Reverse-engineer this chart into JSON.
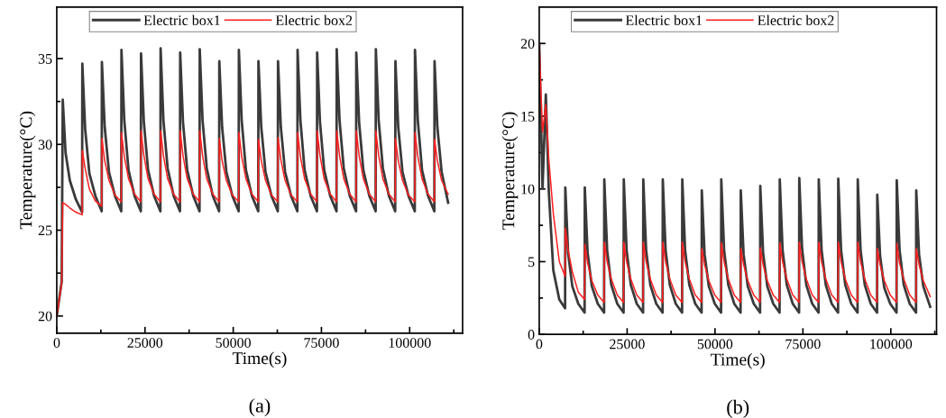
{
  "chart_data": [
    {
      "type": "line",
      "title": "(a)",
      "xlabel": "Time(s)",
      "ylabel": "Temperature(°C)",
      "legend": "top left",
      "grid": false,
      "xlim": [
        0,
        115000
      ],
      "ylim": [
        19,
        38
      ],
      "xticks": [
        0,
        {
          "value": 12500,
          "label": null
        },
        25000,
        {
          "value": 37500,
          "label": null
        },
        50000,
        {
          "value": 62500,
          "label": null
        },
        75000,
        {
          "value": 87500,
          "label": null
        },
        100000,
        {
          "value": 112500,
          "label": null
        }
      ],
      "yticks": [
        20,
        {
          "value": 22.5,
          "label": null
        },
        25,
        {
          "value": 27.5,
          "label": null
        },
        30,
        {
          "value": 32.5,
          "label": null
        },
        35
      ],
      "x": [
        0,
        1400,
        1700,
        2500,
        3700,
        5400,
        7185,
        7245,
        8045,
        9245,
        10945,
        12730,
        12790,
        13590,
        14790,
        16490,
        18275,
        18335,
        19135,
        20335,
        22035,
        23820,
        23880,
        24680,
        25880,
        27580,
        29365,
        29425,
        30225,
        31425,
        33125,
        34910,
        34970,
        35770,
        36970,
        38670,
        40455,
        40515,
        41315,
        42515,
        44215,
        46000,
        46060,
        46860,
        48060,
        49760,
        51545,
        51605,
        52405,
        53605,
        55305,
        57090,
        57150,
        57950,
        59150,
        60850,
        62635,
        62695,
        63495,
        64695,
        66395,
        68180,
        68240,
        69040,
        70240,
        71940,
        73725,
        73785,
        74585,
        75785,
        77485,
        79270,
        79330,
        80130,
        81330,
        83030,
        84815,
        84875,
        85675,
        86875,
        88575,
        90360,
        90420,
        91220,
        92420,
        94120,
        95905,
        95965,
        96765,
        97965,
        99665,
        101450,
        101510,
        102310,
        103510,
        105210,
        106995,
        107055,
        107855,
        109055,
        110900
      ],
      "series": [
        {
          "name": "Electric box1",
          "color": "#3a3a3a",
          "values": [
            20.0,
            22.0,
            32.6,
            29.5,
            27.9,
            26.8,
            26.05,
            34.7,
            30.9,
            28.3,
            27.0,
            26.1,
            34.8,
            31.0,
            28.4,
            27.0,
            26.1,
            35.5,
            31.4,
            28.5,
            27.0,
            26.1,
            35.3,
            31.3,
            28.5,
            27.0,
            26.1,
            35.6,
            31.4,
            28.6,
            27.0,
            26.1,
            35.35,
            31.3,
            28.5,
            27.0,
            26.1,
            35.55,
            31.4,
            28.6,
            27.0,
            26.1,
            34.85,
            31.0,
            28.4,
            27.0,
            26.1,
            35.5,
            31.4,
            28.5,
            27.0,
            26.1,
            34.85,
            31.0,
            28.4,
            27.0,
            26.1,
            34.85,
            31.0,
            28.4,
            27.0,
            26.1,
            35.5,
            31.4,
            28.5,
            27.0,
            26.1,
            35.35,
            31.3,
            28.5,
            27.0,
            26.1,
            35.55,
            31.4,
            28.6,
            27.0,
            26.1,
            35.35,
            31.3,
            28.5,
            27.0,
            26.1,
            35.55,
            31.4,
            28.6,
            27.0,
            26.1,
            34.85,
            31.0,
            28.4,
            27.0,
            26.1,
            35.5,
            31.4,
            28.5,
            27.0,
            26.1,
            34.85,
            31.0,
            28.4,
            26.6
          ]
        },
        {
          "name": "Electric box2",
          "color": "#ff2020",
          "values": [
            20.0,
            21.9,
            26.6,
            26.5,
            26.3,
            26.05,
            25.9,
            29.65,
            28.6,
            27.4,
            26.7,
            26.4,
            30.35,
            29.05,
            27.9,
            27.05,
            26.65,
            30.7,
            29.3,
            28.0,
            27.1,
            26.65,
            30.8,
            29.35,
            28.0,
            27.1,
            26.65,
            30.8,
            29.35,
            28.0,
            27.1,
            26.65,
            30.8,
            29.35,
            28.0,
            27.1,
            26.65,
            30.8,
            29.35,
            28.0,
            27.1,
            26.65,
            30.35,
            29.05,
            27.9,
            27.05,
            26.65,
            30.7,
            29.3,
            28.0,
            27.1,
            26.65,
            30.3,
            29.05,
            27.9,
            27.05,
            26.65,
            30.4,
            29.1,
            27.9,
            27.05,
            26.65,
            30.7,
            29.3,
            28.0,
            27.1,
            26.65,
            30.8,
            29.35,
            28.0,
            27.1,
            26.65,
            30.8,
            29.35,
            28.0,
            27.1,
            26.65,
            30.8,
            29.35,
            28.0,
            27.1,
            26.65,
            30.8,
            29.35,
            28.0,
            27.1,
            26.65,
            30.35,
            29.05,
            27.9,
            27.05,
            26.65,
            30.7,
            29.3,
            28.0,
            27.1,
            26.65,
            30.3,
            29.05,
            27.9,
            27.1
          ]
        }
      ]
    },
    {
      "type": "line",
      "title": "(b)",
      "xlabel": "Time(s)",
      "ylabel": "Temperature(°C)",
      "legend": "top left",
      "grid": false,
      "xlim": [
        0,
        113000
      ],
      "ylim": [
        0,
        22.5
      ],
      "xticks": [
        0,
        {
          "value": 12500,
          "label": null
        },
        25000,
        {
          "value": 37500,
          "label": null
        },
        50000,
        {
          "value": 62500,
          "label": null
        },
        75000,
        {
          "value": 87500,
          "label": null
        },
        100000,
        {
          "value": 112500,
          "label": null
        }
      ],
      "yticks": [
        0,
        {
          "value": 2.5,
          "label": null
        },
        5,
        {
          "value": 7.5,
          "label": null
        },
        10,
        {
          "value": 12.5,
          "label": null
        },
        15,
        {
          "value": 17.5,
          "label": null
        },
        20
      ],
      "x": [
        0,
        940,
        1880,
        2730,
        4010,
        5715,
        7360,
        7420,
        8220,
        9420,
        11120,
        12905,
        12965,
        13765,
        14965,
        16665,
        18450,
        18510,
        19310,
        20510,
        22210,
        23995,
        24055,
        24855,
        26055,
        27755,
        29540,
        29600,
        30400,
        31600,
        33300,
        35085,
        35145,
        35945,
        37145,
        38845,
        40630,
        40690,
        41490,
        42690,
        44390,
        46175,
        46235,
        47035,
        48235,
        49935,
        51720,
        51780,
        52580,
        53780,
        55480,
        57265,
        57325,
        58125,
        59325,
        61025,
        62810,
        62870,
        63670,
        64870,
        66570,
        68355,
        68415,
        69215,
        70415,
        72115,
        73900,
        73960,
        74760,
        75960,
        77660,
        79445,
        79505,
        80305,
        81505,
        83205,
        84990,
        85050,
        85850,
        87050,
        88750,
        90535,
        90595,
        91395,
        92595,
        94295,
        96080,
        96140,
        96940,
        98140,
        99840,
        101625,
        101685,
        102485,
        103685,
        105385,
        107170,
        107230,
        108030,
        109230,
        111200
      ],
      "series": [
        {
          "name": "Electric box1",
          "color": "#3a3a3a",
          "values": [
            20.0,
            10.0,
            16.5,
            9.8,
            4.4,
            2.4,
            1.8,
            10.1,
            5.6,
            3.3,
            2.1,
            1.5,
            10.1,
            5.6,
            3.3,
            2.1,
            1.5,
            10.65,
            5.8,
            3.4,
            2.1,
            1.5,
            10.65,
            5.8,
            3.4,
            2.1,
            1.5,
            10.65,
            5.8,
            3.4,
            2.1,
            1.5,
            10.65,
            5.8,
            3.4,
            2.1,
            1.5,
            10.65,
            5.8,
            3.4,
            2.1,
            1.5,
            9.9,
            5.5,
            3.3,
            2.1,
            1.5,
            10.65,
            5.8,
            3.4,
            2.1,
            1.5,
            9.9,
            5.5,
            3.3,
            2.1,
            1.5,
            10.2,
            5.6,
            3.3,
            2.1,
            1.5,
            10.65,
            5.8,
            3.4,
            2.1,
            1.5,
            10.75,
            5.9,
            3.4,
            2.1,
            1.5,
            10.65,
            5.8,
            3.4,
            2.1,
            1.5,
            10.7,
            5.8,
            3.4,
            2.1,
            1.5,
            10.65,
            5.8,
            3.4,
            2.1,
            1.5,
            9.6,
            5.4,
            3.2,
            2.1,
            1.5,
            10.6,
            5.8,
            3.4,
            2.1,
            1.5,
            9.9,
            5.5,
            3.3,
            1.9
          ]
        },
        {
          "name": "Electric box2",
          "color": "#ff2020",
          "values": [
            20.0,
            13.9,
            15.8,
            12.0,
            8.3,
            5.0,
            4.0,
            7.3,
            5.8,
            4.3,
            2.9,
            2.4,
            6.2,
            4.9,
            3.7,
            2.7,
            2.2,
            6.35,
            5.0,
            3.8,
            2.7,
            2.2,
            6.35,
            5.0,
            3.8,
            2.7,
            2.2,
            6.35,
            5.0,
            3.8,
            2.7,
            2.2,
            6.35,
            5.0,
            3.8,
            2.7,
            2.2,
            6.35,
            5.0,
            3.8,
            2.7,
            2.2,
            5.9,
            4.8,
            3.7,
            2.7,
            2.2,
            6.3,
            5.0,
            3.8,
            2.7,
            2.2,
            5.9,
            4.8,
            3.7,
            2.7,
            2.2,
            5.95,
            4.8,
            3.7,
            2.7,
            2.2,
            6.3,
            5.0,
            3.8,
            2.7,
            2.2,
            6.35,
            5.0,
            3.8,
            2.7,
            2.2,
            6.35,
            5.0,
            3.8,
            2.7,
            2.2,
            6.35,
            5.0,
            3.8,
            2.7,
            2.2,
            6.35,
            5.0,
            3.8,
            2.7,
            2.2,
            5.9,
            4.8,
            3.7,
            2.7,
            2.2,
            6.25,
            4.9,
            3.8,
            2.7,
            2.2,
            5.9,
            4.8,
            3.7,
            2.6
          ]
        }
      ]
    }
  ]
}
